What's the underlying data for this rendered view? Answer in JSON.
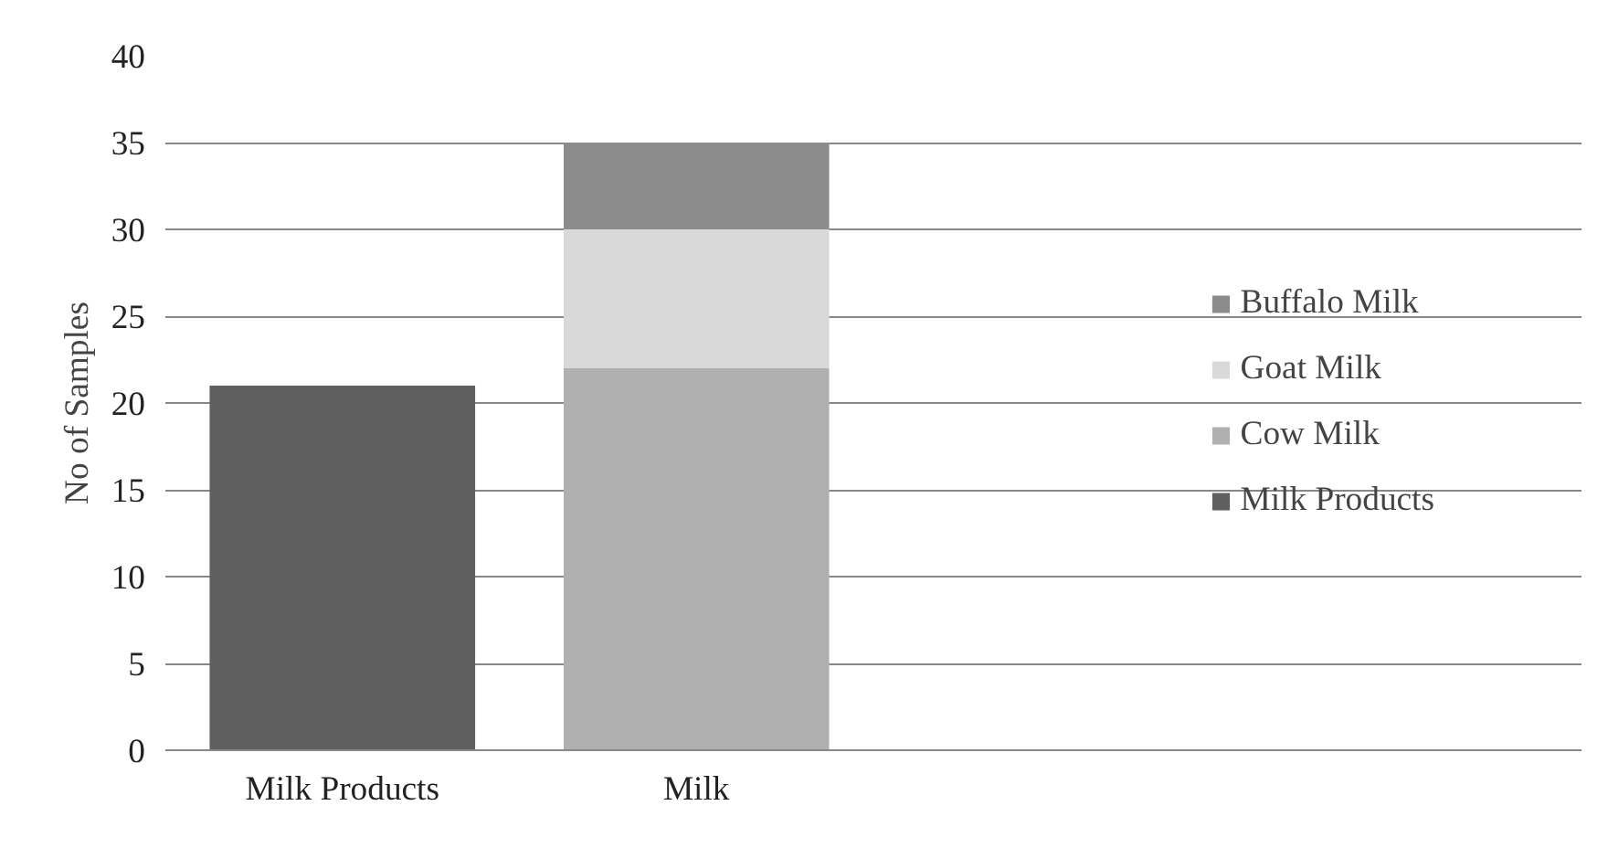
{
  "chart_data": {
    "type": "bar",
    "stacked": true,
    "ylabel": "No of Samples",
    "categories": [
      "Milk Products",
      "Milk"
    ],
    "series": [
      {
        "name": "Milk Products",
        "color": "#5f5f5f",
        "values": [
          21,
          null
        ]
      },
      {
        "name": "Cow Milk",
        "color": "#b0b0b0",
        "values": [
          null,
          22
        ]
      },
      {
        "name": "Goat Milk",
        "color": "#d9d9d9",
        "values": [
          null,
          8
        ]
      },
      {
        "name": "Buffalo Milk",
        "color": "#8c8c8c",
        "values": [
          null,
          5
        ]
      }
    ],
    "ylim": [
      0,
      40
    ],
    "yticks": [
      0,
      5,
      10,
      15,
      20,
      25,
      30,
      35,
      40
    ],
    "grid": "y",
    "legend": "right"
  }
}
